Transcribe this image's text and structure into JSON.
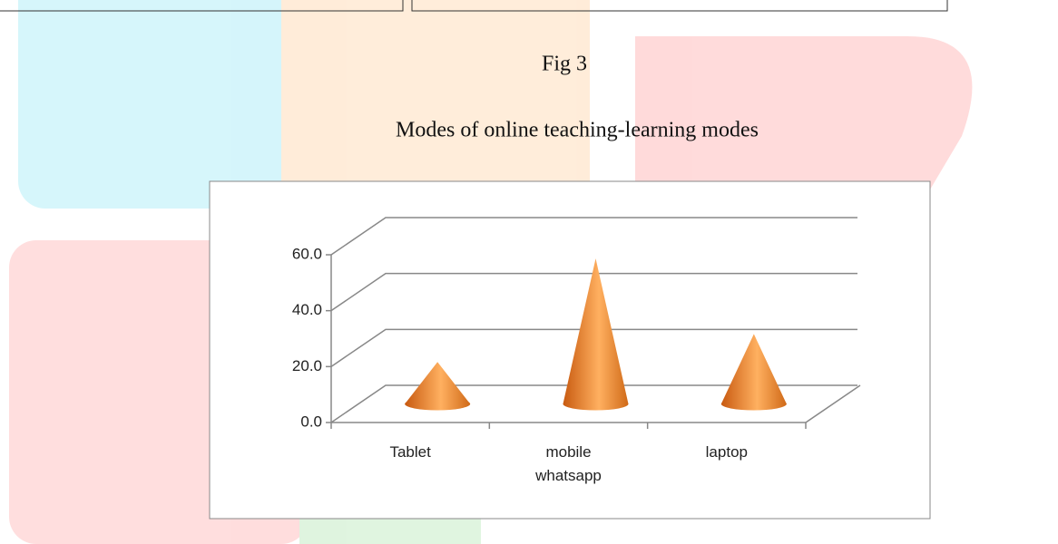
{
  "figure_label": "Fig 3",
  "caption": "Modes of online teaching-learning modes",
  "chart_data": {
    "type": "cone3d",
    "categories": [
      "Tablet",
      "mobile whatsapp",
      "laptop"
    ],
    "values": [
      15,
      52,
      25
    ],
    "color": "#f08a2a",
    "ylim": [
      0,
      60
    ],
    "yticks": [
      {
        "value": 0,
        "label": "0.0"
      },
      {
        "value": 20,
        "label": "20.0"
      },
      {
        "value": 40,
        "label": "40.0"
      },
      {
        "value": 60,
        "label": "60.0"
      }
    ],
    "grid": true
  }
}
